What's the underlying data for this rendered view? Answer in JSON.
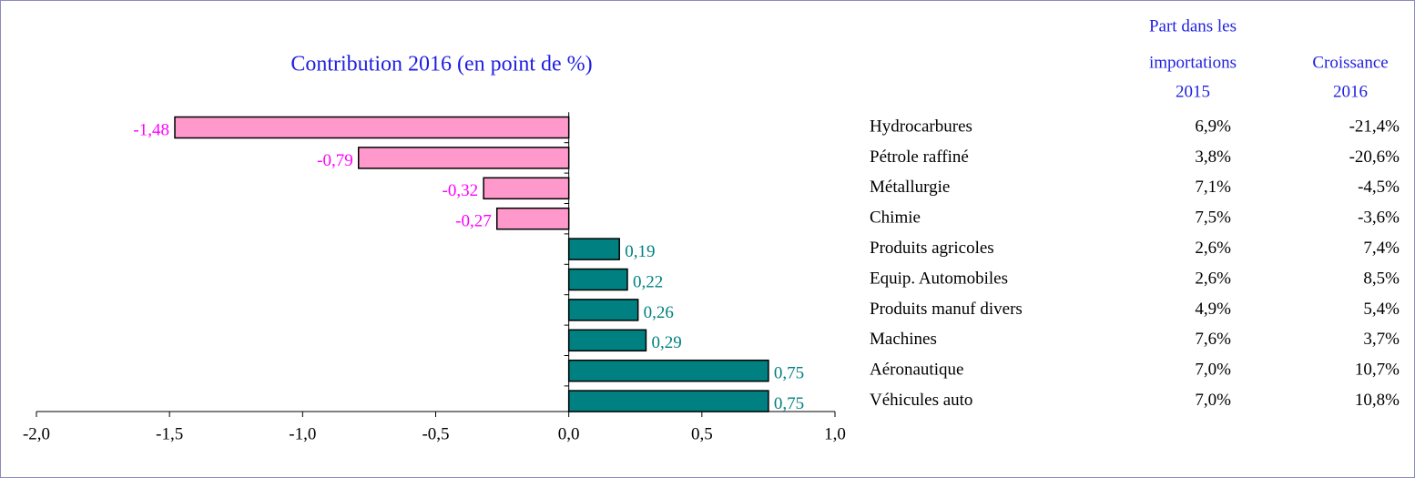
{
  "chart_data": {
    "type": "hbar",
    "title": "Contribution 2016 (en point de %)",
    "categories": [
      "Hydrocarbures",
      "Pétrole raffiné",
      "Métallurgie",
      "Chimie",
      "Produits agricoles",
      "Equip. Automobiles",
      "Produits manuf divers",
      "Machines",
      "Aéronautique",
      "Véhicules auto"
    ],
    "values": [
      -1.48,
      -0.79,
      -0.32,
      -0.27,
      0.19,
      0.22,
      0.26,
      0.29,
      0.75,
      0.75
    ],
    "value_labels": [
      "-1,48",
      "-0,79",
      "-0,32",
      "-0,27",
      "0,19",
      "0,22",
      "0,26",
      "0,29",
      "0,75",
      "0,75"
    ],
    "color_negative": "#ff99cc",
    "color_positive": "#008080",
    "label_color_negative": "#ff00ff",
    "label_color_positive": "#008080",
    "xlim": [
      -2.0,
      1.0
    ],
    "xticks": [
      {
        "value": -2.0,
        "label": "-2,0"
      },
      {
        "value": -1.5,
        "label": "-1,5"
      },
      {
        "value": -1.0,
        "label": "-1,0"
      },
      {
        "value": -0.5,
        "label": "-0,5"
      },
      {
        "value": 0.0,
        "label": "0,0"
      },
      {
        "value": 0.5,
        "label": "0,5"
      },
      {
        "value": 1.0,
        "label": "1,0"
      }
    ],
    "grid": false
  },
  "table": {
    "headers": [
      [
        "Part dans les",
        "importations",
        "2015"
      ],
      [
        "Croissance",
        "2016"
      ]
    ],
    "share": [
      "6,9%",
      "3,8%",
      "7,1%",
      "7,5%",
      "2,6%",
      "2,6%",
      "4,9%",
      "7,6%",
      "7,0%",
      "7,0%"
    ],
    "growth": [
      "-21,4%",
      "-20,6%",
      "-4,5%",
      "-3,6%",
      "7,4%",
      "8,5%",
      "5,4%",
      "3,7%",
      "10,7%",
      "10,8%"
    ]
  }
}
